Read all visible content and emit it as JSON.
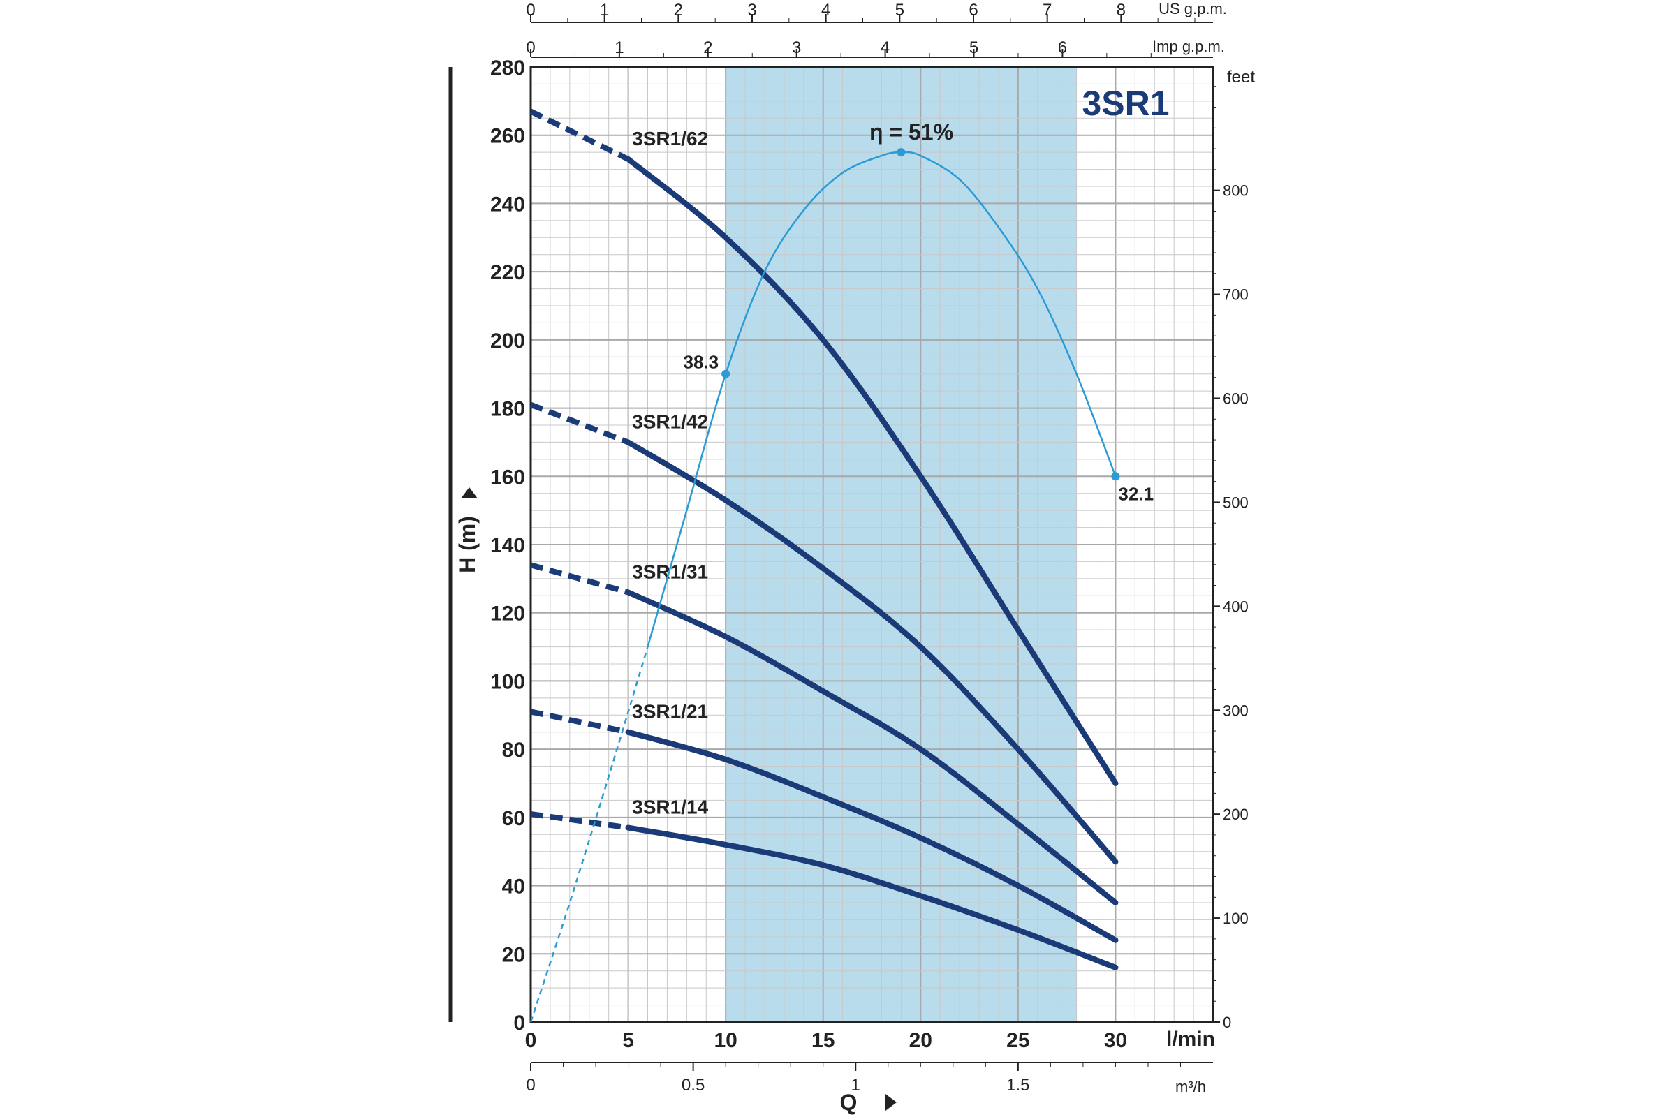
{
  "chart_data": {
    "type": "line",
    "title": "3SR1",
    "xlabel": "Q",
    "ylabel": "H (m)",
    "x_unit": "l/min",
    "xlim": [
      0,
      35
    ],
    "ylim": [
      0,
      280
    ],
    "x_ticks": [
      0,
      5,
      10,
      15,
      20,
      25,
      30
    ],
    "y_ticks": [
      0,
      20,
      40,
      60,
      80,
      100,
      120,
      140,
      160,
      180,
      200,
      220,
      240,
      260,
      280
    ],
    "grid": true,
    "highlight_band": {
      "x_from": 10,
      "x_to": 28
    },
    "axis_us_gpm": {
      "unit": "US g.p.m.",
      "ticks": [
        0,
        1,
        2,
        3,
        4,
        5,
        6,
        7,
        8
      ]
    },
    "axis_imp_gpm": {
      "unit": "Imp g.p.m.",
      "ticks": [
        0,
        1,
        2,
        3,
        4,
        5,
        6
      ]
    },
    "axis_feet": {
      "unit": "feet",
      "ticks": [
        0,
        100,
        200,
        300,
        400,
        500,
        600,
        700,
        800
      ]
    },
    "axis_m3h": {
      "unit": "m³/h",
      "ticks": [
        "0",
        "0.5",
        "1",
        "1.5"
      ],
      "values": [
        0,
        0.5,
        1,
        1.5
      ]
    },
    "series": [
      {
        "name": "3SR1/62",
        "x": [
          0,
          5,
          10,
          15,
          20,
          25,
          30
        ],
        "y": [
          267,
          253,
          230,
          200,
          160,
          115,
          70
        ]
      },
      {
        "name": "3SR1/42",
        "x": [
          0,
          5,
          10,
          15,
          20,
          25,
          30
        ],
        "y": [
          181,
          170,
          153,
          133,
          110,
          80,
          47
        ]
      },
      {
        "name": "3SR1/31",
        "x": [
          0,
          5,
          10,
          15,
          20,
          25,
          30
        ],
        "y": [
          134,
          126,
          113,
          97,
          80,
          58,
          35
        ]
      },
      {
        "name": "3SR1/21",
        "x": [
          0,
          5,
          10,
          15,
          20,
          25,
          30
        ],
        "y": [
          91,
          85,
          77,
          66,
          54,
          40,
          24
        ]
      },
      {
        "name": "3SR1/14",
        "x": [
          0,
          5,
          10,
          15,
          20,
          25,
          30
        ],
        "y": [
          61,
          57,
          52,
          46,
          37,
          27,
          16
        ]
      }
    ],
    "dashed_until_x": 5,
    "efficiency": {
      "label": "η = 51%",
      "points": [
        {
          "x": 10,
          "y": 190,
          "label": "38.3"
        },
        {
          "x": 19,
          "y": 255,
          "label": ""
        },
        {
          "x": 30,
          "y": 160,
          "label": "32.1"
        }
      ],
      "line_x": [
        0,
        2,
        4,
        6,
        8,
        10,
        12,
        14,
        16,
        18,
        19,
        20,
        22,
        24,
        26,
        28,
        30
      ],
      "line_y": [
        0,
        35,
        72,
        110,
        150,
        190,
        220,
        238,
        249,
        254,
        255,
        254,
        247,
        233,
        215,
        190,
        160
      ]
    },
    "colors": {
      "curve": "#1b3a78",
      "efficiency": "#2a9bd4",
      "band": "#b9dcec",
      "title": "#1b3a78",
      "grid": "#c8c8c8"
    }
  }
}
